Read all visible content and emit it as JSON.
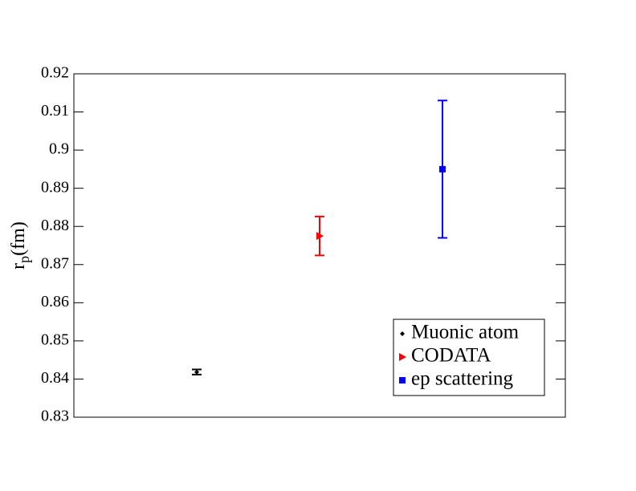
{
  "chart_data": {
    "type": "errorbar",
    "ylabel": "r",
    "ylabel_subscript": "p",
    "ylabel_unit": "(fm)",
    "ylim": [
      0.83,
      0.92
    ],
    "yticks": [
      0.83,
      0.84,
      0.85,
      0.86,
      0.87,
      0.88,
      0.89,
      0.9,
      0.91,
      0.92
    ],
    "legend": "lower right",
    "series": [
      {
        "name": "Muonic atom",
        "color": "#000000",
        "marker": "diamond",
        "values": [
          0.84184
        ],
        "errors": [
          0.00067
        ]
      },
      {
        "name": "CODATA",
        "color": "#ff0000",
        "marker": "triangle-right",
        "values": [
          0.8775
        ],
        "errors": [
          0.0051
        ]
      },
      {
        "name": "ep scattering",
        "color": "#0000ff",
        "marker": "square",
        "values": [
          0.895
        ],
        "errors": [
          0.018
        ]
      }
    ]
  }
}
